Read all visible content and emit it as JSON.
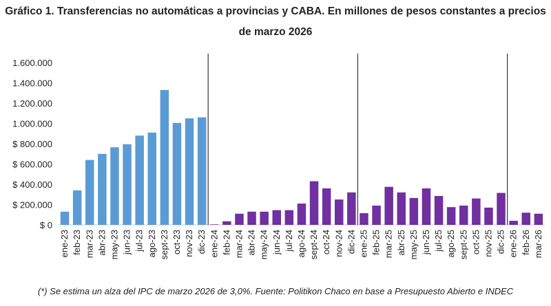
{
  "chart_data": {
    "type": "bar",
    "title_line1": "Gráfico 1. Transferencias no automáticas a provincias y CABA. En millones de pesos constantes a precios",
    "title_line2": "de marzo 2026",
    "footnote": "(*) Se estima un alza del IPC de marzo 2026 de 3,0%. Fuente: Politikon Chaco en base a Presupuesto Abierto e INDEC",
    "ylim": [
      0,
      1600000
    ],
    "yticks": [
      0,
      200000,
      400000,
      600000,
      800000,
      1000000,
      1200000,
      1400000,
      1600000
    ],
    "ytick_labels": [
      "$ 0",
      "$ 200.000",
      "$ 400.000",
      "$ 600.000",
      "$ 800.000",
      "1.000.000",
      "1.200.000",
      "1.400.000",
      "1.600.000"
    ],
    "grid": false,
    "year_separators_after": [
      "dic-23",
      "dic-24",
      "dic-25"
    ],
    "colors": {
      "2023": "#5b9bd5",
      "other": "#7030a0"
    },
    "categories": [
      "ene-23",
      "feb-23",
      "mar-23",
      "abr-23",
      "may-23",
      "jun-23",
      "jul-23",
      "ago-23",
      "sept-23",
      "oct-23",
      "nov-23",
      "dic-23",
      "ene-24",
      "feb-24",
      "mar-24",
      "abr-24",
      "may-24",
      "jun-24",
      "jul-24",
      "ago-24",
      "sept-24",
      "oct-24",
      "nov-24",
      "dic-24",
      "ene-25",
      "feb-25",
      "mar-25",
      "abr-25",
      "may-25",
      "jun-25",
      "jul-25",
      "ago-25",
      "sept-25",
      "oct-25",
      "nov-25",
      "dic-25",
      "ene-26",
      "feb-26",
      "mar-26"
    ],
    "values": [
      130000,
      340000,
      640000,
      700000,
      765000,
      795000,
      880000,
      910000,
      1330000,
      1005000,
      1050000,
      1060000,
      5000,
      35000,
      110000,
      130000,
      130000,
      145000,
      145000,
      210000,
      430000,
      360000,
      250000,
      320000,
      115000,
      190000,
      375000,
      320000,
      265000,
      360000,
      285000,
      175000,
      190000,
      260000,
      170000,
      315000,
      40000,
      120000,
      110000
    ]
  }
}
